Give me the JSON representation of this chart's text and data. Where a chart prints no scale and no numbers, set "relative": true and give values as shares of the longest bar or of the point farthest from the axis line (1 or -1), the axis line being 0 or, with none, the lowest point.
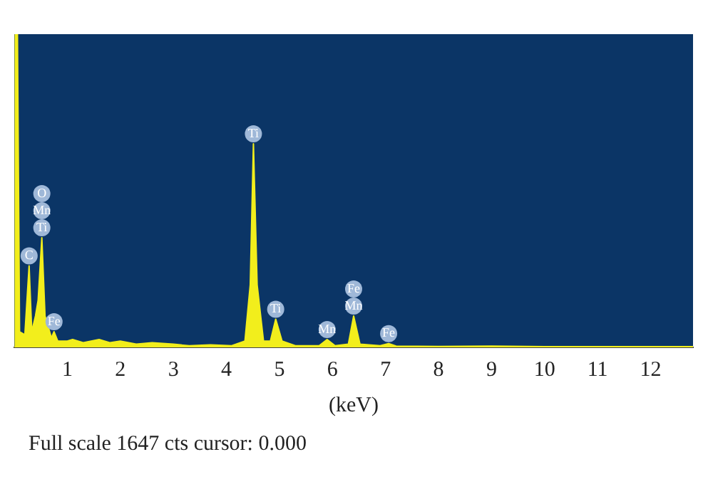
{
  "chart_data": {
    "type": "area",
    "relative": true,
    "xlabel": "(keV)",
    "xlim": [
      0,
      12.8
    ],
    "xticks": [
      1,
      2,
      3,
      4,
      5,
      6,
      7,
      8,
      9,
      10,
      11,
      12
    ],
    "grid": false,
    "legend": false,
    "tick_labels": "x",
    "color": "#f2ee1c",
    "x": [
      0,
      0.02,
      0.06,
      0.1,
      0.2,
      0.28,
      0.33,
      0.4,
      0.45,
      0.52,
      0.58,
      0.65,
      0.7,
      0.75,
      0.82,
      1.0,
      1.1,
      1.3,
      1.6,
      1.8,
      2.0,
      2.3,
      2.6,
      3.0,
      3.3,
      3.7,
      4.1,
      4.35,
      4.45,
      4.51,
      4.58,
      4.7,
      4.83,
      4.93,
      5.05,
      5.3,
      5.75,
      5.9,
      6.05,
      6.3,
      6.4,
      6.52,
      6.9,
      7.06,
      7.2,
      8,
      9,
      10,
      11,
      12,
      12.8
    ],
    "values": [
      0,
      1,
      1,
      0.05,
      0.04,
      0.26,
      0.05,
      0.1,
      0.15,
      0.35,
      0.1,
      0.06,
      0.03,
      0.05,
      0.02,
      0.02,
      0.025,
      0.015,
      0.025,
      0.015,
      0.02,
      0.01,
      0.015,
      0.01,
      0.005,
      0.008,
      0.005,
      0.02,
      0.2,
      0.65,
      0.2,
      0.02,
      0.02,
      0.09,
      0.02,
      0.005,
      0.005,
      0.025,
      0.005,
      0.01,
      0.1,
      0.01,
      0.005,
      0.012,
      0.004,
      0.003,
      0.004,
      0.002,
      0.002,
      0.002,
      0.002
    ],
    "annotations": [
      {
        "text": "C",
        "x": 0.28,
        "y": 0.26
      },
      {
        "text": "O\nMn\nTi",
        "x": 0.52,
        "y": 0.35
      },
      {
        "text": "Fe",
        "x": 0.75,
        "y": 0.05
      },
      {
        "text": "Ti",
        "x": 4.51,
        "y": 0.65
      },
      {
        "text": "Ti",
        "x": 4.93,
        "y": 0.09
      },
      {
        "text": "Mn",
        "x": 5.9,
        "y": 0.025
      },
      {
        "text": "Fe\nMn",
        "x": 6.4,
        "y": 0.1
      },
      {
        "text": "Fe",
        "x": 7.06,
        "y": 0.012
      },
      "Full scale 1647 cts cursor: 0.000"
    ]
  }
}
